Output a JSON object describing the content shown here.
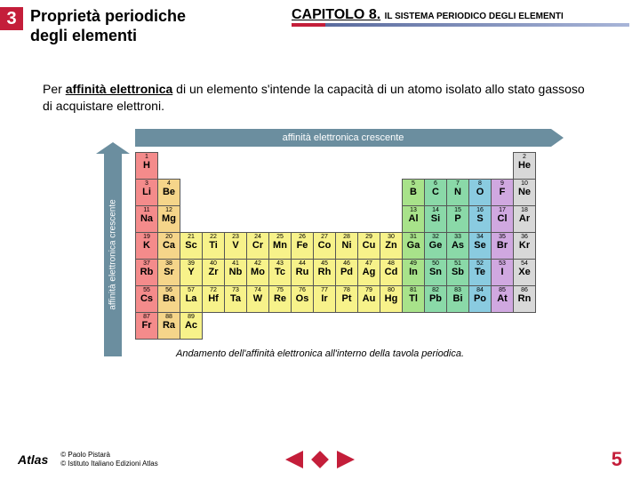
{
  "header": {
    "section_num": "3",
    "section_title_l1": "Proprietà periodiche",
    "section_title_l2": "degli elementi",
    "chapter_title": "CAPITOLO 8.",
    "chapter_sub": " IL SISTEMA PERIODICO DEGLI ELEMENTI"
  },
  "body": {
    "pre": "Per ",
    "bold": "affinità elettronica",
    "post": " di un elemento s'intende la capacità di un atomo isolato allo stato gassoso di acquistare elettroni."
  },
  "figure": {
    "top_arrow_label": "affinità elettronica crescente",
    "left_arrow_label": "affinità elettronica crescente",
    "caption": "Andamento dell'affinità elettronica all'interno della tavola periodica.",
    "colors": {
      "c1": "#f48b8b",
      "c2": "#f5d58a",
      "c3": "#f7f28a",
      "c4": "#a8e28a",
      "c5": "#8ad9a8",
      "c6": "#8acbe0",
      "c7": "#d0a8e0",
      "c8": "#d8d8d8"
    },
    "rows": [
      [
        {
          "n": "1",
          "s": "H",
          "c": "c1"
        },
        {
          "sp": 16
        },
        {
          "n": "2",
          "s": "He",
          "c": "c8"
        }
      ],
      [
        {
          "n": "3",
          "s": "Li",
          "c": "c1"
        },
        {
          "n": "4",
          "s": "Be",
          "c": "c2"
        },
        {
          "sp": 10
        },
        {
          "n": "5",
          "s": "B",
          "c": "c4"
        },
        {
          "n": "6",
          "s": "C",
          "c": "c5"
        },
        {
          "n": "7",
          "s": "N",
          "c": "c5"
        },
        {
          "n": "8",
          "s": "O",
          "c": "c6"
        },
        {
          "n": "9",
          "s": "F",
          "c": "c7"
        },
        {
          "n": "10",
          "s": "Ne",
          "c": "c8"
        }
      ],
      [
        {
          "n": "11",
          "s": "Na",
          "c": "c1"
        },
        {
          "n": "12",
          "s": "Mg",
          "c": "c2"
        },
        {
          "sp": 10
        },
        {
          "n": "13",
          "s": "Al",
          "c": "c4"
        },
        {
          "n": "14",
          "s": "Si",
          "c": "c5"
        },
        {
          "n": "15",
          "s": "P",
          "c": "c5"
        },
        {
          "n": "16",
          "s": "S",
          "c": "c6"
        },
        {
          "n": "17",
          "s": "Cl",
          "c": "c7"
        },
        {
          "n": "18",
          "s": "Ar",
          "c": "c8"
        }
      ],
      [
        {
          "n": "19",
          "s": "K",
          "c": "c1"
        },
        {
          "n": "20",
          "s": "Ca",
          "c": "c2"
        },
        {
          "n": "21",
          "s": "Sc",
          "c": "c3"
        },
        {
          "n": "22",
          "s": "Ti",
          "c": "c3"
        },
        {
          "n": "23",
          "s": "V",
          "c": "c3"
        },
        {
          "n": "24",
          "s": "Cr",
          "c": "c3"
        },
        {
          "n": "25",
          "s": "Mn",
          "c": "c3"
        },
        {
          "n": "26",
          "s": "Fe",
          "c": "c3"
        },
        {
          "n": "27",
          "s": "Co",
          "c": "c3"
        },
        {
          "n": "28",
          "s": "Ni",
          "c": "c3"
        },
        {
          "n": "29",
          "s": "Cu",
          "c": "c3"
        },
        {
          "n": "30",
          "s": "Zn",
          "c": "c3"
        },
        {
          "n": "31",
          "s": "Ga",
          "c": "c4"
        },
        {
          "n": "32",
          "s": "Ge",
          "c": "c5"
        },
        {
          "n": "33",
          "s": "As",
          "c": "c5"
        },
        {
          "n": "34",
          "s": "Se",
          "c": "c6"
        },
        {
          "n": "35",
          "s": "Br",
          "c": "c7"
        },
        {
          "n": "36",
          "s": "Kr",
          "c": "c8"
        }
      ],
      [
        {
          "n": "37",
          "s": "Rb",
          "c": "c1"
        },
        {
          "n": "38",
          "s": "Sr",
          "c": "c2"
        },
        {
          "n": "39",
          "s": "Y",
          "c": "c3"
        },
        {
          "n": "40",
          "s": "Zr",
          "c": "c3"
        },
        {
          "n": "41",
          "s": "Nb",
          "c": "c3"
        },
        {
          "n": "42",
          "s": "Mo",
          "c": "c3"
        },
        {
          "n": "43",
          "s": "Tc",
          "c": "c3"
        },
        {
          "n": "44",
          "s": "Ru",
          "c": "c3"
        },
        {
          "n": "45",
          "s": "Rh",
          "c": "c3"
        },
        {
          "n": "46",
          "s": "Pd",
          "c": "c3"
        },
        {
          "n": "47",
          "s": "Ag",
          "c": "c3"
        },
        {
          "n": "48",
          "s": "Cd",
          "c": "c3"
        },
        {
          "n": "49",
          "s": "In",
          "c": "c4"
        },
        {
          "n": "50",
          "s": "Sn",
          "c": "c5"
        },
        {
          "n": "51",
          "s": "Sb",
          "c": "c5"
        },
        {
          "n": "52",
          "s": "Te",
          "c": "c6"
        },
        {
          "n": "53",
          "s": "I",
          "c": "c7"
        },
        {
          "n": "54",
          "s": "Xe",
          "c": "c8"
        }
      ],
      [
        {
          "n": "55",
          "s": "Cs",
          "c": "c1"
        },
        {
          "n": "56",
          "s": "Ba",
          "c": "c2"
        },
        {
          "n": "57",
          "s": "La",
          "c": "c3"
        },
        {
          "n": "72",
          "s": "Hf",
          "c": "c3"
        },
        {
          "n": "73",
          "s": "Ta",
          "c": "c3"
        },
        {
          "n": "74",
          "s": "W",
          "c": "c3"
        },
        {
          "n": "75",
          "s": "Re",
          "c": "c3"
        },
        {
          "n": "76",
          "s": "Os",
          "c": "c3"
        },
        {
          "n": "77",
          "s": "Ir",
          "c": "c3"
        },
        {
          "n": "78",
          "s": "Pt",
          "c": "c3"
        },
        {
          "n": "79",
          "s": "Au",
          "c": "c3"
        },
        {
          "n": "80",
          "s": "Hg",
          "c": "c3"
        },
        {
          "n": "81",
          "s": "Tl",
          "c": "c4"
        },
        {
          "n": "82",
          "s": "Pb",
          "c": "c5"
        },
        {
          "n": "83",
          "s": "Bi",
          "c": "c5"
        },
        {
          "n": "84",
          "s": "Po",
          "c": "c6"
        },
        {
          "n": "85",
          "s": "At",
          "c": "c7"
        },
        {
          "n": "86",
          "s": "Rn",
          "c": "c8"
        }
      ],
      [
        {
          "n": "87",
          "s": "Fr",
          "c": "c1"
        },
        {
          "n": "88",
          "s": "Ra",
          "c": "c2"
        },
        {
          "n": "89",
          "s": "Ac",
          "c": "c3"
        },
        {
          "sp": 15
        }
      ]
    ]
  },
  "footer": {
    "logo": "Atlas",
    "copy1": "© Paolo Pistarà",
    "copy2": "© Istituto Italiano Edizioni Atlas",
    "page": "5"
  }
}
